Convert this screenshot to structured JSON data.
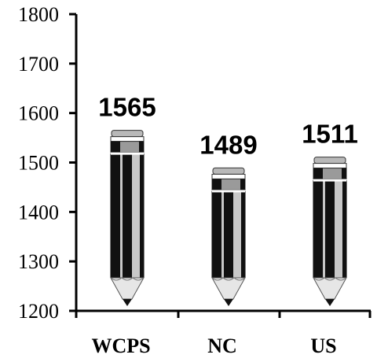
{
  "chart_data": {
    "type": "bar",
    "categories": [
      "WCPS",
      "NC",
      "US"
    ],
    "values": [
      1565,
      1489,
      1511
    ],
    "data_labels": [
      "1565",
      "1489",
      "1511"
    ],
    "ylim": [
      1200,
      1800
    ],
    "y_ticks": [
      1200,
      1300,
      1400,
      1500,
      1600,
      1700,
      1800
    ],
    "y_tick_labels": [
      "1200",
      "1300",
      "1400",
      "1500",
      "1600",
      "1700",
      "1800"
    ],
    "title": "",
    "xlabel": "",
    "ylabel": "",
    "grid": false,
    "bar_style": "pencil",
    "colors": {
      "axis": "#000000",
      "pencil_dark": "#111111",
      "pencil_light": "#c8c8c8",
      "ferrule": "#9a9a9a",
      "wood": "#e6e6e6",
      "lead": "#111111"
    }
  }
}
